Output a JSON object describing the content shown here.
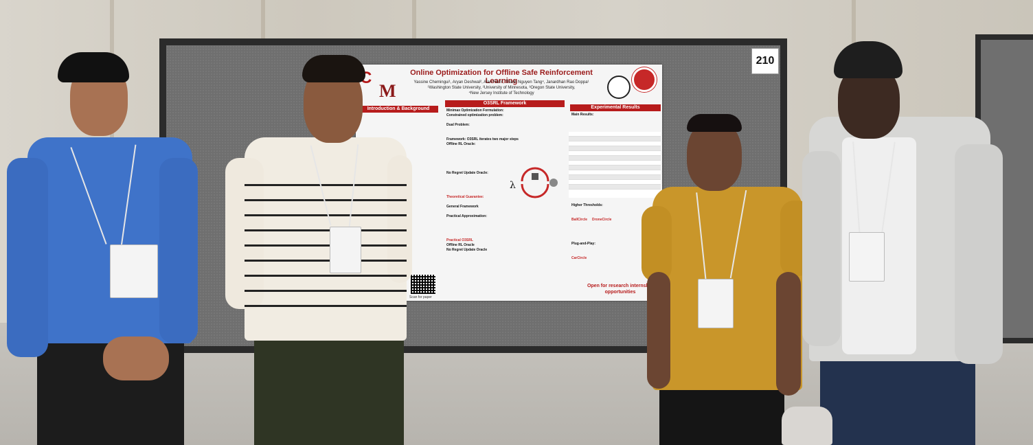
{
  "board": {
    "number": "210"
  },
  "poster": {
    "title": "Online Optimization for Offline Safe Reinforcement Learning",
    "authors": "Yassine Chemingui¹, Aryan Deshwal², Alan Fern³, Thanh Nguyen Tang⁴, Janardhan Rao Doppa¹",
    "affiliations_1": "¹Washington State University, ²University of Minnesota, ³Oregon State University,",
    "affiliations_2": "⁴New Jersey Institute of Technology",
    "sections": {
      "intro": "Introduction & Background",
      "framework": "O3SRL Framework",
      "results": "Experimental Results"
    },
    "framework_lines": {
      "minimax": "Minimax Optimization Formulation:",
      "constrained": "Constrained optimization problem:",
      "dual": "Dual Problem:",
      "framework": "Framework: O3SRL iterates two major steps",
      "oracle": "Offline RL Oracle:",
      "no_regret": "No Regret Update Oracle:",
      "theory": "Theoretical Guarantee:",
      "general": "General Framework",
      "practical": "Practical Approximation:",
      "practical_o3srl": "Practical O3SRL",
      "offline_oracle": "Offline RL Oracle",
      "no_regret_oracle": "No Regret Update Oracle"
    },
    "results_lines": {
      "main": "Main Results:",
      "higher": "Higher Thresholds:",
      "plug": "Plug-and-Play:",
      "ballcircle": "BallCircle",
      "dronecircle": "DroneCircle",
      "carcircle": "CarCircle"
    },
    "scan": "Scan for paper",
    "opportunities": "Open for research internship opportunities"
  }
}
